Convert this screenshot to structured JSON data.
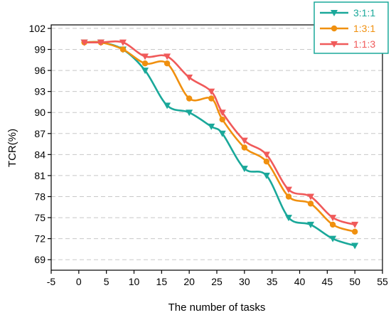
{
  "chart_data": {
    "type": "line",
    "title": "",
    "xlabel": "The number of tasks",
    "ylabel": "TCR(%)",
    "xlim": [
      -5,
      55
    ],
    "ylim": [
      67.5,
      102.5
    ],
    "xticks": [
      -5,
      0,
      5,
      10,
      15,
      20,
      25,
      30,
      35,
      40,
      45,
      50,
      55
    ],
    "yticks": [
      69,
      72,
      75,
      78,
      81,
      84,
      87,
      90,
      93,
      96,
      99,
      102
    ],
    "grid": "horizontal dashed",
    "legend_position": "top-right",
    "series": [
      {
        "name": "3:1:1",
        "color": "#1aa89a",
        "marker": "triangle-down",
        "x": [
          1,
          4,
          8,
          12,
          16,
          20,
          24,
          26,
          30,
          34,
          38,
          42,
          46,
          50
        ],
        "y": [
          100,
          100,
          99,
          96,
          91,
          90,
          88,
          87,
          82,
          81,
          75,
          74,
          72,
          71
        ]
      },
      {
        "name": "1:3:1",
        "color": "#f0900f",
        "marker": "circle",
        "x": [
          1,
          4,
          8,
          12,
          16,
          20,
          24,
          26,
          30,
          34,
          38,
          42,
          46,
          50
        ],
        "y": [
          100,
          100,
          99,
          97,
          97,
          92,
          92,
          89,
          85,
          83,
          78,
          77,
          74,
          73
        ]
      },
      {
        "name": "1:1:3",
        "color": "#f05a5a",
        "marker": "triangle-down",
        "x": [
          1,
          4,
          8,
          12,
          16,
          20,
          24,
          26,
          30,
          34,
          38,
          42,
          46,
          50
        ],
        "y": [
          100,
          100,
          100,
          98,
          98,
          95,
          93,
          90,
          86,
          84,
          79,
          78,
          75,
          74
        ]
      }
    ]
  }
}
